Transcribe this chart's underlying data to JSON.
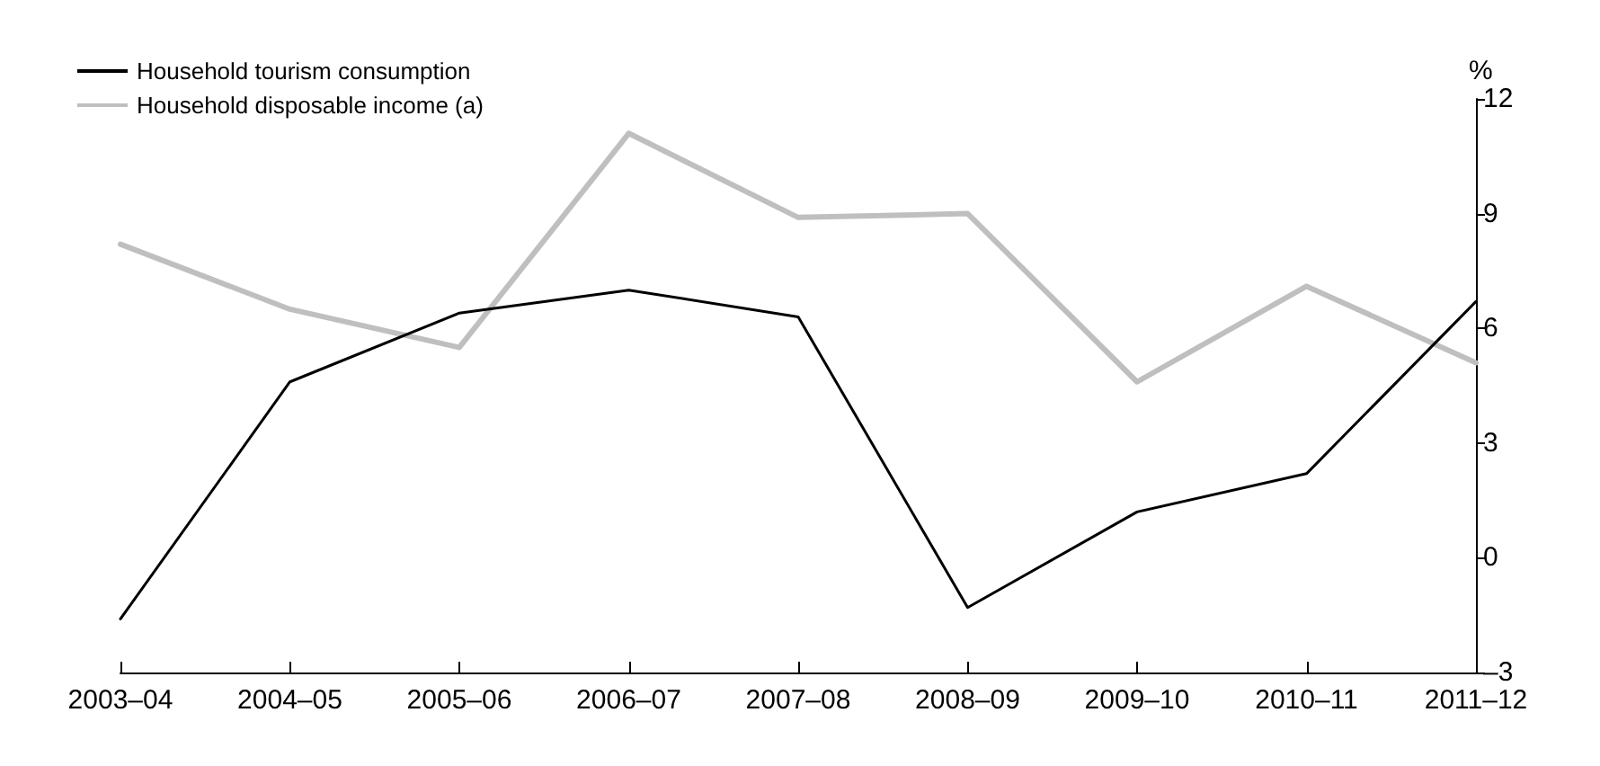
{
  "chart_data": {
    "type": "line",
    "ylabel": "%",
    "categories": [
      "2003–04",
      "2004–05",
      "2005–06",
      "2006–07",
      "2007–08",
      "2008–09",
      "2009–10",
      "2010–11",
      "2011–12"
    ],
    "series": [
      {
        "name": "Household tourism consumption",
        "color": "#000000",
        "values": [
          -1.6,
          4.6,
          6.4,
          7.0,
          6.3,
          -1.3,
          1.2,
          2.2,
          6.7
        ]
      },
      {
        "name": "Household disposable income (a)",
        "color": "#bfbfbf",
        "values": [
          8.2,
          6.5,
          5.5,
          11.1,
          8.9,
          9.0,
          4.6,
          7.1,
          5.1
        ]
      }
    ],
    "ylim": [
      -3,
      12
    ],
    "yticks": [
      {
        "value": -3,
        "label": "–3"
      },
      0,
      3,
      6,
      9,
      12
    ],
    "grid": false,
    "legend": "top left",
    "marker": "none"
  }
}
